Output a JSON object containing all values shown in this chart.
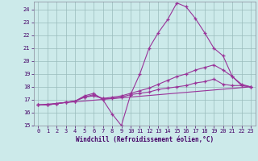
{
  "xlabel": "Windchill (Refroidissement éolien,°C)",
  "background_color": "#cceaea",
  "line_color": "#993399",
  "grid_color": "#99bbbb",
  "xlim": [
    -0.5,
    23.5
  ],
  "ylim": [
    15,
    24.6
  ],
  "yticks": [
    15,
    16,
    17,
    18,
    19,
    20,
    21,
    22,
    23,
    24
  ],
  "xticks": [
    0,
    1,
    2,
    3,
    4,
    5,
    6,
    7,
    8,
    9,
    10,
    11,
    12,
    13,
    14,
    15,
    16,
    17,
    18,
    19,
    20,
    21,
    22,
    23
  ],
  "series": [
    {
      "x": [
        0,
        1,
        2,
        3,
        4,
        5,
        6,
        7,
        8,
        9,
        10,
        11,
        12,
        13,
        14,
        15,
        16,
        17,
        18,
        19,
        20,
        21,
        22,
        23
      ],
      "y": [
        16.6,
        16.6,
        16.7,
        16.8,
        16.9,
        17.3,
        17.5,
        17.0,
        15.9,
        15.0,
        17.4,
        19.0,
        21.0,
        22.2,
        23.2,
        24.5,
        24.2,
        23.3,
        22.2,
        21.0,
        20.4,
        18.8,
        18.1,
        18.0
      ],
      "marker": true
    },
    {
      "x": [
        0,
        1,
        2,
        3,
        4,
        5,
        6,
        7,
        8,
        9,
        10,
        11,
        12,
        13,
        14,
        15,
        16,
        17,
        18,
        19,
        20,
        21,
        22,
        23
      ],
      "y": [
        16.6,
        16.6,
        16.7,
        16.8,
        16.9,
        17.2,
        17.4,
        17.1,
        17.2,
        17.3,
        17.5,
        17.7,
        17.9,
        18.2,
        18.5,
        18.8,
        19.0,
        19.3,
        19.5,
        19.7,
        19.3,
        18.8,
        18.2,
        18.0
      ],
      "marker": true
    },
    {
      "x": [
        0,
        1,
        2,
        3,
        4,
        5,
        6,
        7,
        8,
        9,
        10,
        11,
        12,
        13,
        14,
        15,
        16,
        17,
        18,
        19,
        20,
        21,
        22,
        23
      ],
      "y": [
        16.6,
        16.6,
        16.7,
        16.8,
        16.9,
        17.2,
        17.3,
        17.1,
        17.1,
        17.2,
        17.4,
        17.5,
        17.6,
        17.8,
        17.9,
        18.0,
        18.1,
        18.3,
        18.4,
        18.6,
        18.2,
        18.1,
        18.1,
        18.0
      ],
      "marker": true
    },
    {
      "x": [
        0,
        23
      ],
      "y": [
        16.6,
        18.0
      ],
      "marker": false
    }
  ]
}
